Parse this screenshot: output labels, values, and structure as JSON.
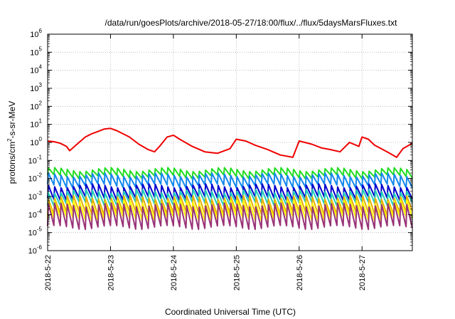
{
  "chart_data": {
    "type": "line",
    "title": "/data/run/goesPlots/archive/2018-05-27/18:00/flux/../flux/5daysMarsFluxes.txt",
    "xlabel": "Coordinated Universal Time (UTC)",
    "ylabel": {
      "pre": "protons/cm",
      "sup": "2",
      "post": "-s-sr-MeV"
    },
    "yscale": "log",
    "ylim_exponent": [
      -6,
      6
    ],
    "y_tick_exponents": [
      -6,
      -5,
      -4,
      -3,
      -2,
      -1,
      0,
      1,
      2,
      3,
      4,
      5,
      6
    ],
    "y_tick_base": "10",
    "xlim": [
      0,
      5.8
    ],
    "x_ticks": [
      {
        "x": 0,
        "label": "2018-5-22"
      },
      {
        "x": 1,
        "label": "2018-5-23"
      },
      {
        "x": 2,
        "label": "2018-5-24"
      },
      {
        "x": 3,
        "label": "2018-5-25"
      },
      {
        "x": 4,
        "label": "2018-5-26"
      },
      {
        "x": 5,
        "label": "2018-5-27"
      }
    ],
    "grid": true,
    "series": [
      {
        "color": "#ee0000",
        "width": 2,
        "x": [
          0,
          0.1,
          0.2,
          0.3,
          0.35,
          0.45,
          0.5,
          0.6,
          0.7,
          0.8,
          0.9,
          1.0,
          1.1,
          1.3,
          1.45,
          1.6,
          1.7,
          1.78,
          1.9,
          2.0,
          2.1,
          2.3,
          2.5,
          2.7,
          2.9,
          3.0,
          3.15,
          3.3,
          3.5,
          3.7,
          3.9,
          4.0,
          4.2,
          4.35,
          4.5,
          4.65,
          4.8,
          4.95,
          5.0,
          5.1,
          5.2,
          5.4,
          5.55,
          5.65,
          5.8
        ],
        "y": [
          1.2,
          1.1,
          0.9,
          0.6,
          0.35,
          0.7,
          1.0,
          2.0,
          3.0,
          4.0,
          5.5,
          6.0,
          4.5,
          2.0,
          0.8,
          0.4,
          0.3,
          0.6,
          2.0,
          2.5,
          1.5,
          0.6,
          0.3,
          0.25,
          0.45,
          1.5,
          1.2,
          0.7,
          0.4,
          0.2,
          0.15,
          1.2,
          0.8,
          0.5,
          0.4,
          0.3,
          1.0,
          0.6,
          2.0,
          1.5,
          0.7,
          0.3,
          0.15,
          0.45,
          0.9
        ]
      },
      {
        "color": "#22dd22",
        "width": 2,
        "sawtooth": true,
        "hi": 0.032,
        "lo": 0.013
      },
      {
        "color": "#1188ee",
        "width": 2,
        "sawtooth": true,
        "hi": 0.016,
        "lo": 0.004
      },
      {
        "color": "#0000cc",
        "width": 2,
        "sawtooth": true,
        "hi": 0.004,
        "lo": 0.0008
      },
      {
        "color": "#22ccbb",
        "width": 2,
        "sawtooth": true,
        "hi": 0.002,
        "lo": 0.0004
      },
      {
        "color": "#e8b000",
        "width": 2,
        "sawtooth": true,
        "hi": 0.0009,
        "lo": 0.00012
      },
      {
        "color": "#ffff00",
        "width": 2,
        "sawtooth": true,
        "hi": 0.0005,
        "lo": 6e-05
      },
      {
        "color": "#993377",
        "width": 2,
        "sawtooth": true,
        "hi": 0.00035,
        "lo": 2e-05
      }
    ]
  }
}
